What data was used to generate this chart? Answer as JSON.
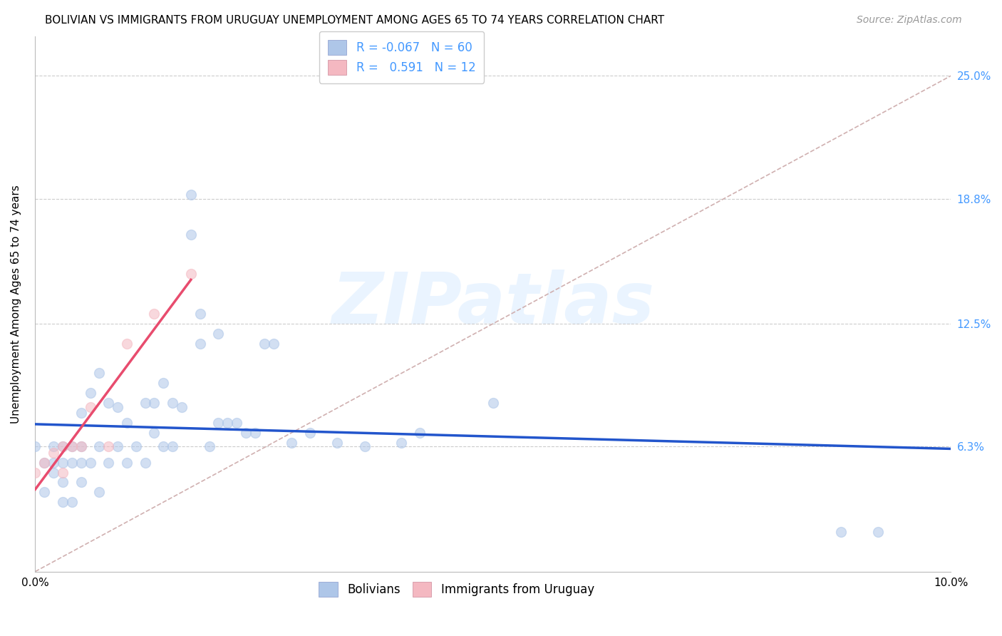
{
  "title": "BOLIVIAN VS IMMIGRANTS FROM URUGUAY UNEMPLOYMENT AMONG AGES 65 TO 74 YEARS CORRELATION CHART",
  "source": "Source: ZipAtlas.com",
  "ylabel": "Unemployment Among Ages 65 to 74 years",
  "xlim": [
    0.0,
    0.1
  ],
  "ylim": [
    0.0,
    0.27
  ],
  "background_color": "#ffffff",
  "grid_color": "#cccccc",
  "watermark_text": "ZIPatlas",
  "bolivians_color": "#aec6e8",
  "uruguay_color": "#f4b8c1",
  "blue_line_color": "#2255cc",
  "pink_line_color": "#e84c6e",
  "diagonal_color": "#d0b0b0",
  "r_bolivians": -0.067,
  "n_bolivians": 60,
  "r_uruguay": 0.591,
  "n_uruguay": 12,
  "bolivians_x": [
    0.0,
    0.001,
    0.001,
    0.002,
    0.002,
    0.002,
    0.003,
    0.003,
    0.003,
    0.003,
    0.004,
    0.004,
    0.004,
    0.005,
    0.005,
    0.005,
    0.005,
    0.006,
    0.006,
    0.007,
    0.007,
    0.007,
    0.008,
    0.008,
    0.009,
    0.009,
    0.01,
    0.01,
    0.011,
    0.012,
    0.012,
    0.013,
    0.013,
    0.014,
    0.014,
    0.015,
    0.015,
    0.016,
    0.017,
    0.017,
    0.018,
    0.018,
    0.019,
    0.02,
    0.02,
    0.021,
    0.022,
    0.023,
    0.024,
    0.025,
    0.026,
    0.028,
    0.03,
    0.033,
    0.036,
    0.04,
    0.042,
    0.05,
    0.088,
    0.092
  ],
  "bolivians_y": [
    0.063,
    0.055,
    0.04,
    0.063,
    0.055,
    0.05,
    0.063,
    0.055,
    0.045,
    0.035,
    0.063,
    0.055,
    0.035,
    0.08,
    0.063,
    0.055,
    0.045,
    0.09,
    0.055,
    0.1,
    0.063,
    0.04,
    0.085,
    0.055,
    0.083,
    0.063,
    0.075,
    0.055,
    0.063,
    0.085,
    0.055,
    0.085,
    0.07,
    0.095,
    0.063,
    0.085,
    0.063,
    0.083,
    0.17,
    0.19,
    0.13,
    0.115,
    0.063,
    0.12,
    0.075,
    0.075,
    0.075,
    0.07,
    0.07,
    0.115,
    0.115,
    0.065,
    0.07,
    0.065,
    0.063,
    0.065,
    0.07,
    0.085,
    0.02,
    0.02
  ],
  "uruguay_x": [
    0.0,
    0.001,
    0.002,
    0.003,
    0.003,
    0.004,
    0.005,
    0.006,
    0.008,
    0.01,
    0.013,
    0.017
  ],
  "uruguay_y": [
    0.05,
    0.055,
    0.06,
    0.063,
    0.05,
    0.063,
    0.063,
    0.083,
    0.063,
    0.115,
    0.13,
    0.15
  ],
  "title_fontsize": 11,
  "axis_fontsize": 11,
  "tick_fontsize": 11,
  "legend_fontsize": 12,
  "source_fontsize": 10,
  "marker_size": 100,
  "marker_alpha": 0.55,
  "right_axis_color": "#4499ff",
  "ytick_positions": [
    0.063,
    0.125,
    0.188,
    0.25
  ],
  "ytick_labels": [
    "6.3%",
    "12.5%",
    "18.8%",
    "25.0%"
  ]
}
